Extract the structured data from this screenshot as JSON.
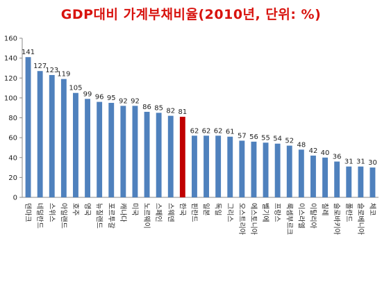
{
  "chart_data": {
    "type": "bar",
    "title": "GDP대비 가계부채비율(2010년, 단위: %)",
    "categories": [
      "덴마크",
      "네덜란드",
      "스위스",
      "아일랜드",
      "호주",
      "영국",
      "뉴질랜드",
      "포르투갈",
      "캐나다",
      "미국",
      "노르웨이",
      "스페인",
      "스웨덴",
      "한국",
      "핀란드",
      "일본",
      "독일",
      "그리스",
      "오스트리아",
      "에스토니아",
      "벨기에",
      "프랑스",
      "룩셈부르크",
      "이스라엘",
      "이탈리아",
      "칠레",
      "슬로바키아",
      "폴란드",
      "슬로베니아",
      "체코"
    ],
    "values": [
      141,
      127,
      123,
      119,
      105,
      99,
      96,
      95,
      92,
      92,
      86,
      85,
      82,
      81,
      62,
      62,
      62,
      61,
      57,
      56,
      55,
      54,
      52,
      48,
      42,
      40,
      36,
      31,
      31,
      30
    ],
    "highlight_category": "한국",
    "ylim": [
      0,
      160
    ],
    "yticks": [
      0,
      20,
      40,
      60,
      80,
      100,
      120,
      140,
      160
    ],
    "grid": false,
    "colors": {
      "bar": "#4f81bd",
      "highlight": "#c00000"
    }
  }
}
